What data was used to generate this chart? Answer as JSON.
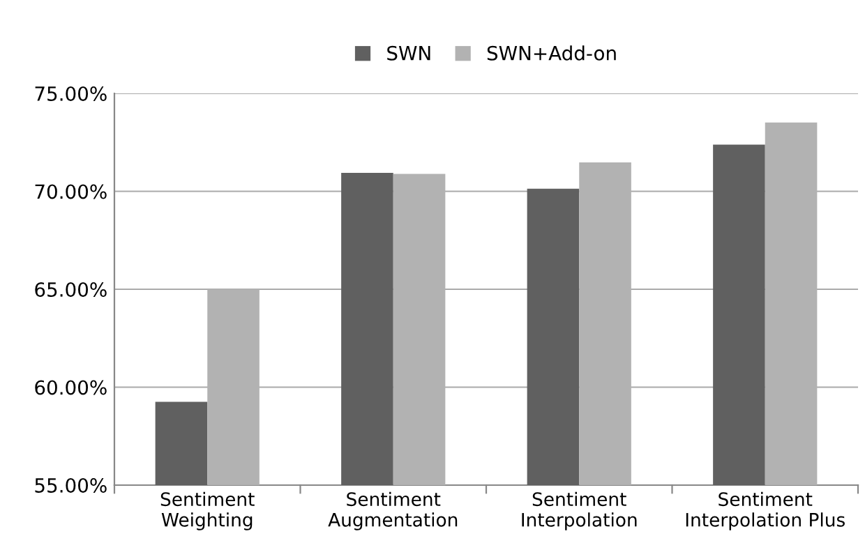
{
  "chart_data": {
    "type": "bar",
    "categories": [
      "Sentiment\nWeighting",
      "Sentiment\nAugmentation",
      "Sentiment\nInterpolation",
      "Sentiment\nInterpolation Plus"
    ],
    "series": [
      {
        "name": "SWN",
        "color": "#606060",
        "values": [
          59.25,
          70.94,
          70.13,
          72.38
        ]
      },
      {
        "name": "SWN+Add-on",
        "color": "#b2b2b2",
        "values": [
          65.0,
          70.89,
          71.48,
          73.51
        ]
      }
    ],
    "ylim": [
      55,
      75
    ],
    "yticks": [
      {
        "value": 55,
        "label": "55.00%"
      },
      {
        "value": 60,
        "label": "60.00%"
      },
      {
        "value": 65,
        "label": "65.00%"
      },
      {
        "value": 70,
        "label": "70.00%"
      },
      {
        "value": 75,
        "label": "75.00%"
      }
    ],
    "grid": "y",
    "legend": "top"
  }
}
